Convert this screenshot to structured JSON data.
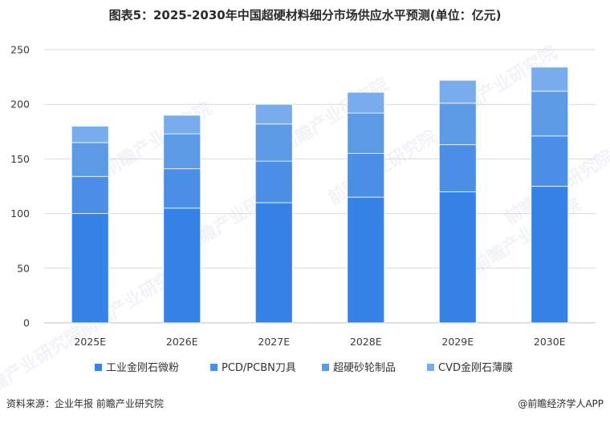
{
  "header": {
    "title": "图表5：2025-2030年中国超硬材料细分市场供应水平预测(单位：亿元)"
  },
  "footer": {
    "source": "资料来源：企业年报 前瞻产业研究院",
    "credit": "@前瞻经济学人APP"
  },
  "watermark": {
    "text": "前瞻产业研究院"
  },
  "colors": {
    "series1": "#3683e8",
    "series2": "#4a8ee6",
    "series3": "#5d9ae6",
    "series4": "#78acec",
    "grid": "#d9d9d9",
    "axis": "#bfbfbf"
  },
  "chart_data": {
    "type": "bar",
    "stacked": true,
    "categories": [
      "2025E",
      "2026E",
      "2027E",
      "2028E",
      "2029E",
      "2030E"
    ],
    "series": [
      {
        "name": "工业金刚石微粉",
        "values": [
          100,
          105,
          110,
          115,
          120,
          125
        ]
      },
      {
        "name": "PCD/PCBN刀具",
        "values": [
          34,
          36,
          38,
          40,
          43,
          46
        ]
      },
      {
        "name": "超硬砂轮制品",
        "values": [
          31,
          32,
          34,
          37,
          38,
          41
        ]
      },
      {
        "name": "CVD金刚石薄膜",
        "values": [
          15,
          17,
          18,
          19,
          21,
          22
        ]
      }
    ],
    "yticks": [
      0,
      50,
      100,
      150,
      200,
      250
    ],
    "ylim": [
      0,
      250
    ],
    "grid": true,
    "legend": "bottom"
  }
}
